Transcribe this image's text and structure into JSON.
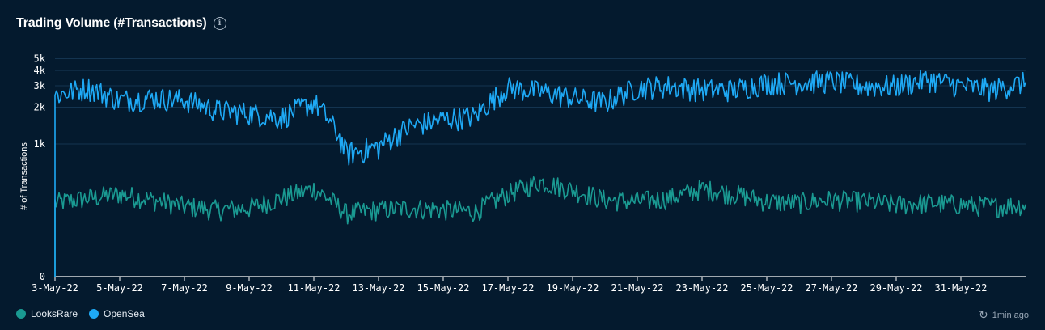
{
  "header": {
    "title": "Trading Volume (#Transactions)",
    "info_icon": "info-icon"
  },
  "colors": {
    "background": "#041a2e",
    "grid": "#143450",
    "looksrare": "#1a9a92",
    "opensea": "#1ea9f5",
    "axis_text": "#ffffff"
  },
  "footer": {
    "legend": [
      {
        "name": "LooksRare",
        "color": "#1a9a92"
      },
      {
        "name": "OpenSea",
        "color": "#1ea9f5"
      }
    ],
    "updated_icon": "refresh-icon",
    "updated_text": "1min ago"
  },
  "chart_data": {
    "type": "line",
    "ylabel": "# of Transactions",
    "yscale": "log",
    "yticks": [
      {
        "value": 0,
        "label": "0"
      },
      {
        "value": 1000,
        "label": "1k"
      },
      {
        "value": 2000,
        "label": "2k"
      },
      {
        "value": 3000,
        "label": "3k"
      },
      {
        "value": 4000,
        "label": "4k"
      },
      {
        "value": 5000,
        "label": "5k"
      }
    ],
    "x_tick_labels": [
      "3-May-22",
      "5-May-22",
      "7-May-22",
      "9-May-22",
      "11-May-22",
      "13-May-22",
      "15-May-22",
      "17-May-22",
      "19-May-22",
      "21-May-22",
      "23-May-22",
      "25-May-22",
      "27-May-22",
      "29-May-22",
      "31-May-22"
    ],
    "xrange": [
      "3-May-22",
      "2-Jun-22"
    ],
    "grid": true,
    "legend": "bottom-left",
    "x": [
      "3-May-22",
      "4-May-22",
      "5-May-22",
      "6-May-22",
      "7-May-22",
      "8-May-22",
      "9-May-22",
      "10-May-22",
      "11-May-22",
      "12-May-22",
      "13-May-22",
      "14-May-22",
      "15-May-22",
      "16-May-22",
      "17-May-22",
      "18-May-22",
      "19-May-22",
      "20-May-22",
      "21-May-22",
      "22-May-22",
      "23-May-22",
      "24-May-22",
      "25-May-22",
      "26-May-22",
      "27-May-22",
      "28-May-22",
      "29-May-22",
      "30-May-22",
      "31-May-22",
      "1-Jun-22",
      "2-Jun-22"
    ],
    "series": [
      {
        "name": "OpenSea",
        "color": "#1ea9f5",
        "values": [
          2500,
          2900,
          2300,
          2400,
          2300,
          1900,
          1800,
          1650,
          2200,
          850,
          950,
          1400,
          1600,
          1700,
          2900,
          2700,
          2400,
          2200,
          2900,
          3000,
          2800,
          2800,
          3200,
          3200,
          3300,
          3000,
          3000,
          3400,
          3000,
          2800,
          3200
        ]
      },
      {
        "name": "LooksRare",
        "color": "#1a9a92",
        "values": [
          360,
          390,
          420,
          380,
          340,
          320,
          330,
          390,
          460,
          300,
          320,
          330,
          320,
          310,
          420,
          520,
          450,
          380,
          370,
          390,
          460,
          420,
          370,
          360,
          380,
          370,
          350,
          360,
          350,
          340,
          350
        ]
      }
    ]
  }
}
